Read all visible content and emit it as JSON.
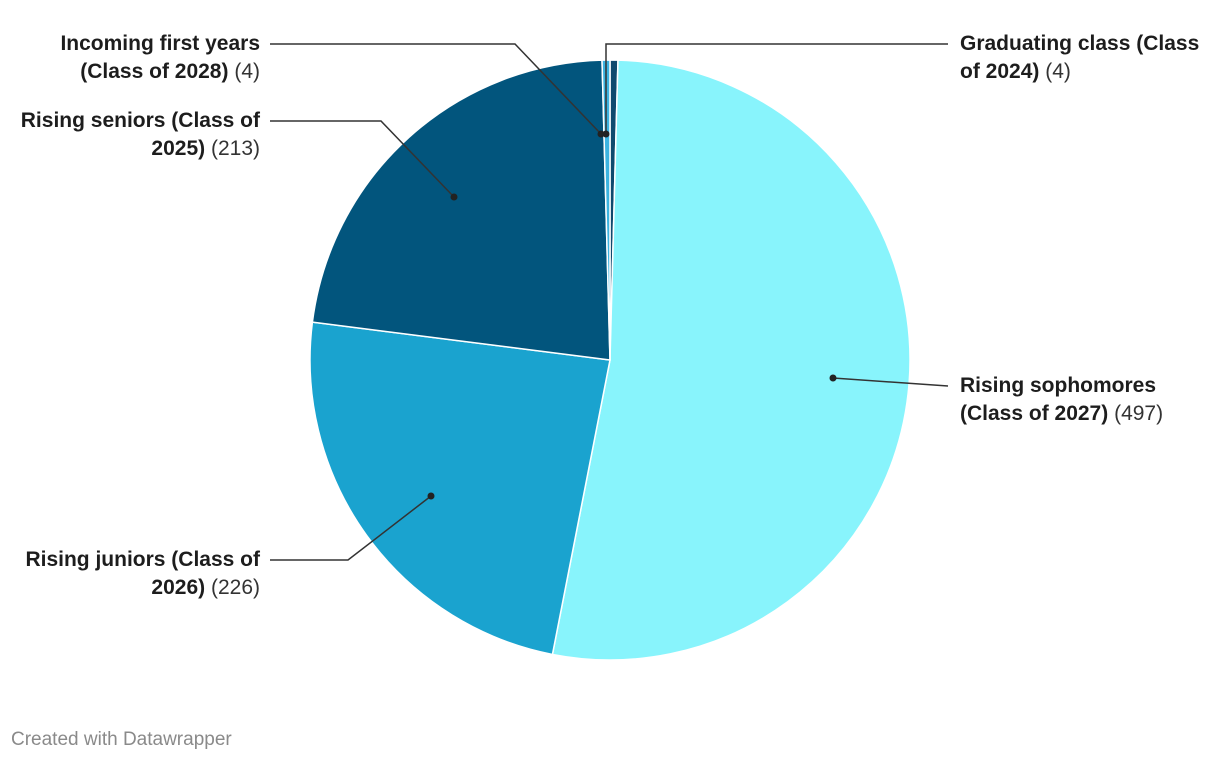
{
  "chart_data": {
    "type": "pie",
    "categories": [
      "Graduating class (Class of 2024)",
      "Rising sophomores (Class of 2027)",
      "Rising juniors (Class of 2026)",
      "Rising seniors (Class of 2025)",
      "Incoming first years (Class of 2028)"
    ],
    "values": [
      4,
      497,
      226,
      213,
      4
    ],
    "value_labels": [
      "(4)",
      "(497)",
      "(226)",
      "(213)",
      "(4)"
    ],
    "colors": [
      "#0f4a6e",
      "#88f4fc",
      "#1aa3cf",
      "#02557d",
      "#3cb4e0"
    ],
    "credit": "Created with Datawrapper"
  }
}
